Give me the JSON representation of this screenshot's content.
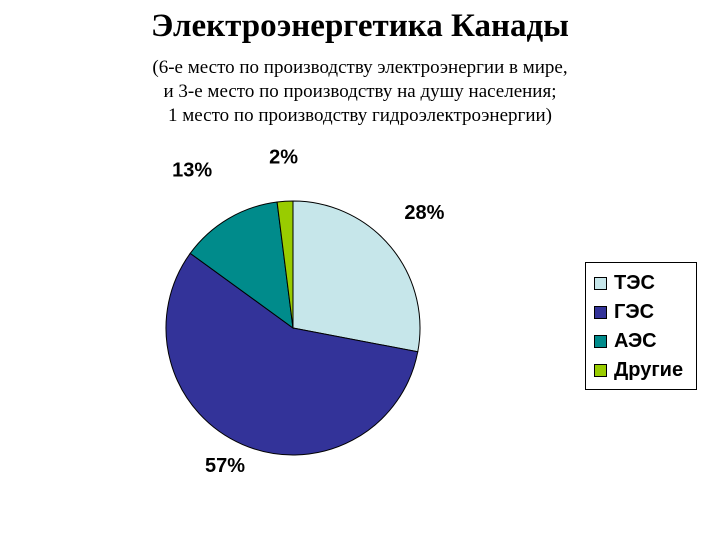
{
  "title": "Электроэнергетика Канады",
  "subtitle_lines": [
    "(6-е место по производству электроэнергии в мире,",
    "и 3-е место по производству на душу населения;",
    "1 место по производству гидроэлектроэнергии)"
  ],
  "legend": [
    {
      "label": "ТЭС",
      "color": "#c6e6ea"
    },
    {
      "label": "ГЭС",
      "color": "#333399"
    },
    {
      "label": "АЭС",
      "color": "#008b8b"
    },
    {
      "label": "Другие",
      "color": "#99cc00"
    }
  ],
  "chart_data": {
    "type": "pie",
    "title": "Электроэнергетика Канады",
    "categories": [
      "ТЭС",
      "ГЭС",
      "АЭС",
      "Другие"
    ],
    "values": [
      28,
      57,
      13,
      2
    ],
    "labels": [
      "28%",
      "57%",
      "13%",
      "2%"
    ],
    "colors": [
      "#c6e6ea",
      "#333399",
      "#008b8b",
      "#99cc00"
    ],
    "legend_position": "right"
  }
}
